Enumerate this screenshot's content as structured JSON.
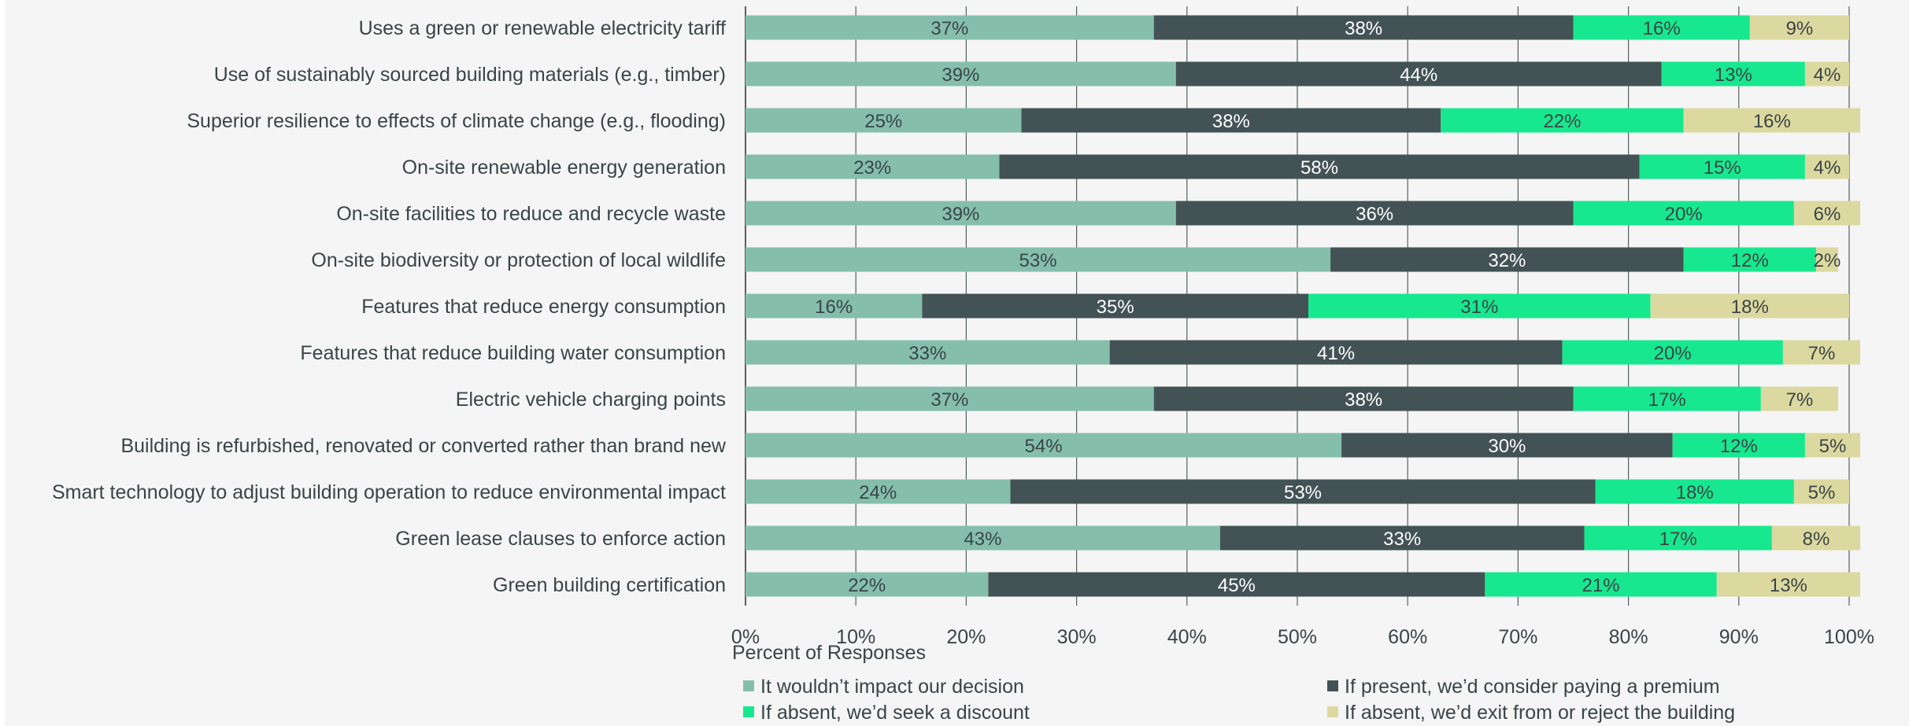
{
  "colors": {
    "background": "#f5f5f5",
    "grid": "#555f61",
    "text": "#3a4446",
    "s1": "#85bfac",
    "s2": "#435254",
    "s3": "#17e88f",
    "s4": "#dcd9a0",
    "label_on_light": "#3a4446",
    "label_on_dark": "#ffffff"
  },
  "chart_data": {
    "type": "bar",
    "orientation": "horizontal",
    "stacked": true,
    "categories": [
      "Uses a green or renewable electricity tariff",
      "Use of sustainably sourced building materials (e.g., timber)",
      "Superior resilience to effects of climate change (e.g., flooding)",
      "On-site renewable energy generation",
      "On-site facilities to reduce and recycle waste",
      "On-site biodiversity or protection of local wildlife",
      "Features that reduce energy consumption",
      "Features that reduce building water consumption",
      "Electric vehicle charging points",
      "Building is refurbished, renovated or converted rather than brand new",
      "Smart technology to adjust building operation to reduce environmental impact",
      "Green lease clauses to enforce action",
      "Green building certification"
    ],
    "series": [
      {
        "name": "It wouldn’t impact our decision",
        "values": [
          37,
          39,
          25,
          23,
          39,
          53,
          16,
          33,
          37,
          54,
          24,
          43,
          22
        ]
      },
      {
        "name": "If present, we’d consider paying a premium",
        "values": [
          38,
          44,
          38,
          58,
          36,
          32,
          35,
          41,
          38,
          30,
          53,
          33,
          45
        ]
      },
      {
        "name": "If absent, we’d seek a discount",
        "values": [
          16,
          13,
          22,
          15,
          20,
          12,
          31,
          20,
          17,
          12,
          18,
          17,
          21
        ]
      },
      {
        "name": "If absent, we’d exit from or reject the building",
        "values": [
          9,
          4,
          16,
          4,
          6,
          2,
          18,
          7,
          7,
          5,
          5,
          8,
          13
        ]
      }
    ],
    "x_ticks": [
      "0%",
      "10%",
      "20%",
      "30%",
      "40%",
      "50%",
      "60%",
      "70%",
      "80%",
      "90%",
      "100%"
    ],
    "xlim": [
      0,
      100
    ],
    "xlabel": "Percent of Responses",
    "ylabel": "",
    "title": "",
    "value_suffix": "%",
    "grid": "vertical",
    "legend_position": "bottom"
  }
}
